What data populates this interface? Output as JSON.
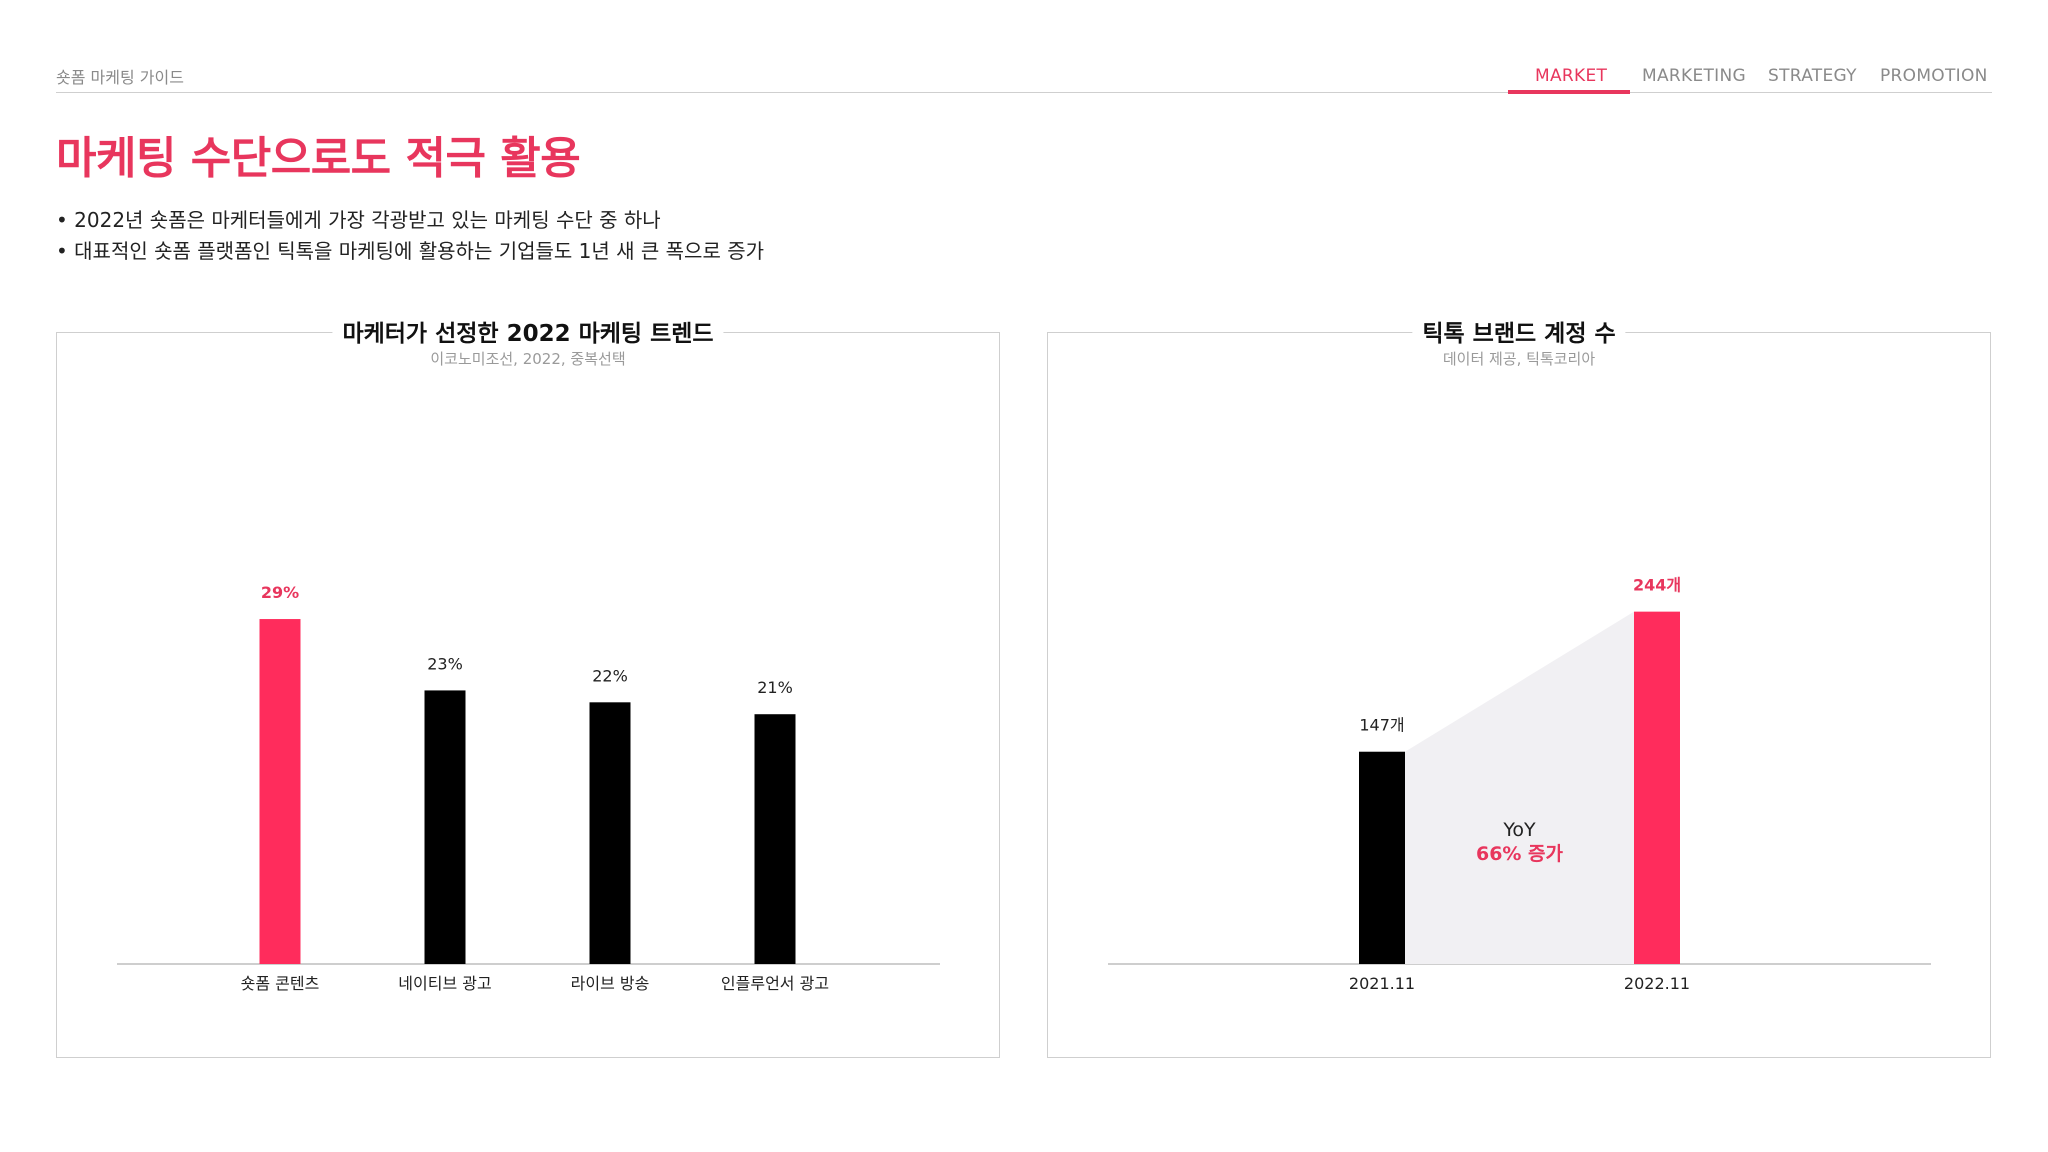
{
  "header": {
    "label": "숏폼 마케팅 가이드",
    "nav": [
      "MARKET",
      "MARKETING",
      "STRATEGY",
      "PROMOTION"
    ],
    "active_nav": "MARKET"
  },
  "title": "마케팅 수단으로도 적극 활용",
  "bullets": [
    "• 2022년 숏폼은 마케터들에게 가장 각광받고 있는 마케팅 수단 중 하나",
    "• 대표적인 숏폼 플랫폼인 틱톡을 마케팅에 활용하는 기업들도 1년 새 큰 폭으로 증가"
  ],
  "colors": {
    "accent": "#ff2c5c",
    "bar": "#000000",
    "title": "#e8365d",
    "shade": "#f1f0f3"
  },
  "chart_data": [
    {
      "type": "bar",
      "title": "마케터가 선정한 2022 마케팅 트렌드",
      "subtitle": "이코노미조선, 2022, 중복선택",
      "categories": [
        "숏폼 콘텐츠",
        "네이티브 광고",
        "라이브 방송",
        "인플루언서 광고"
      ],
      "values": [
        29,
        23,
        22,
        21
      ],
      "data_labels": [
        "29%",
        "23%",
        "22%",
        "21%"
      ],
      "highlight_index": 0,
      "ylim": [
        0,
        38
      ],
      "grid": false
    },
    {
      "type": "bar",
      "title": "틱톡 브랜드 계정 수",
      "subtitle": "데이터 제공, 틱톡코리아",
      "categories": [
        "2021.11",
        "2022.11"
      ],
      "values": [
        147,
        244
      ],
      "data_labels": [
        "147개",
        "244개"
      ],
      "highlight_index": 1,
      "ylim": [
        0,
        313
      ],
      "grid": false,
      "annotation": {
        "line1": "YoY",
        "line2": "66% 증가"
      }
    }
  ]
}
